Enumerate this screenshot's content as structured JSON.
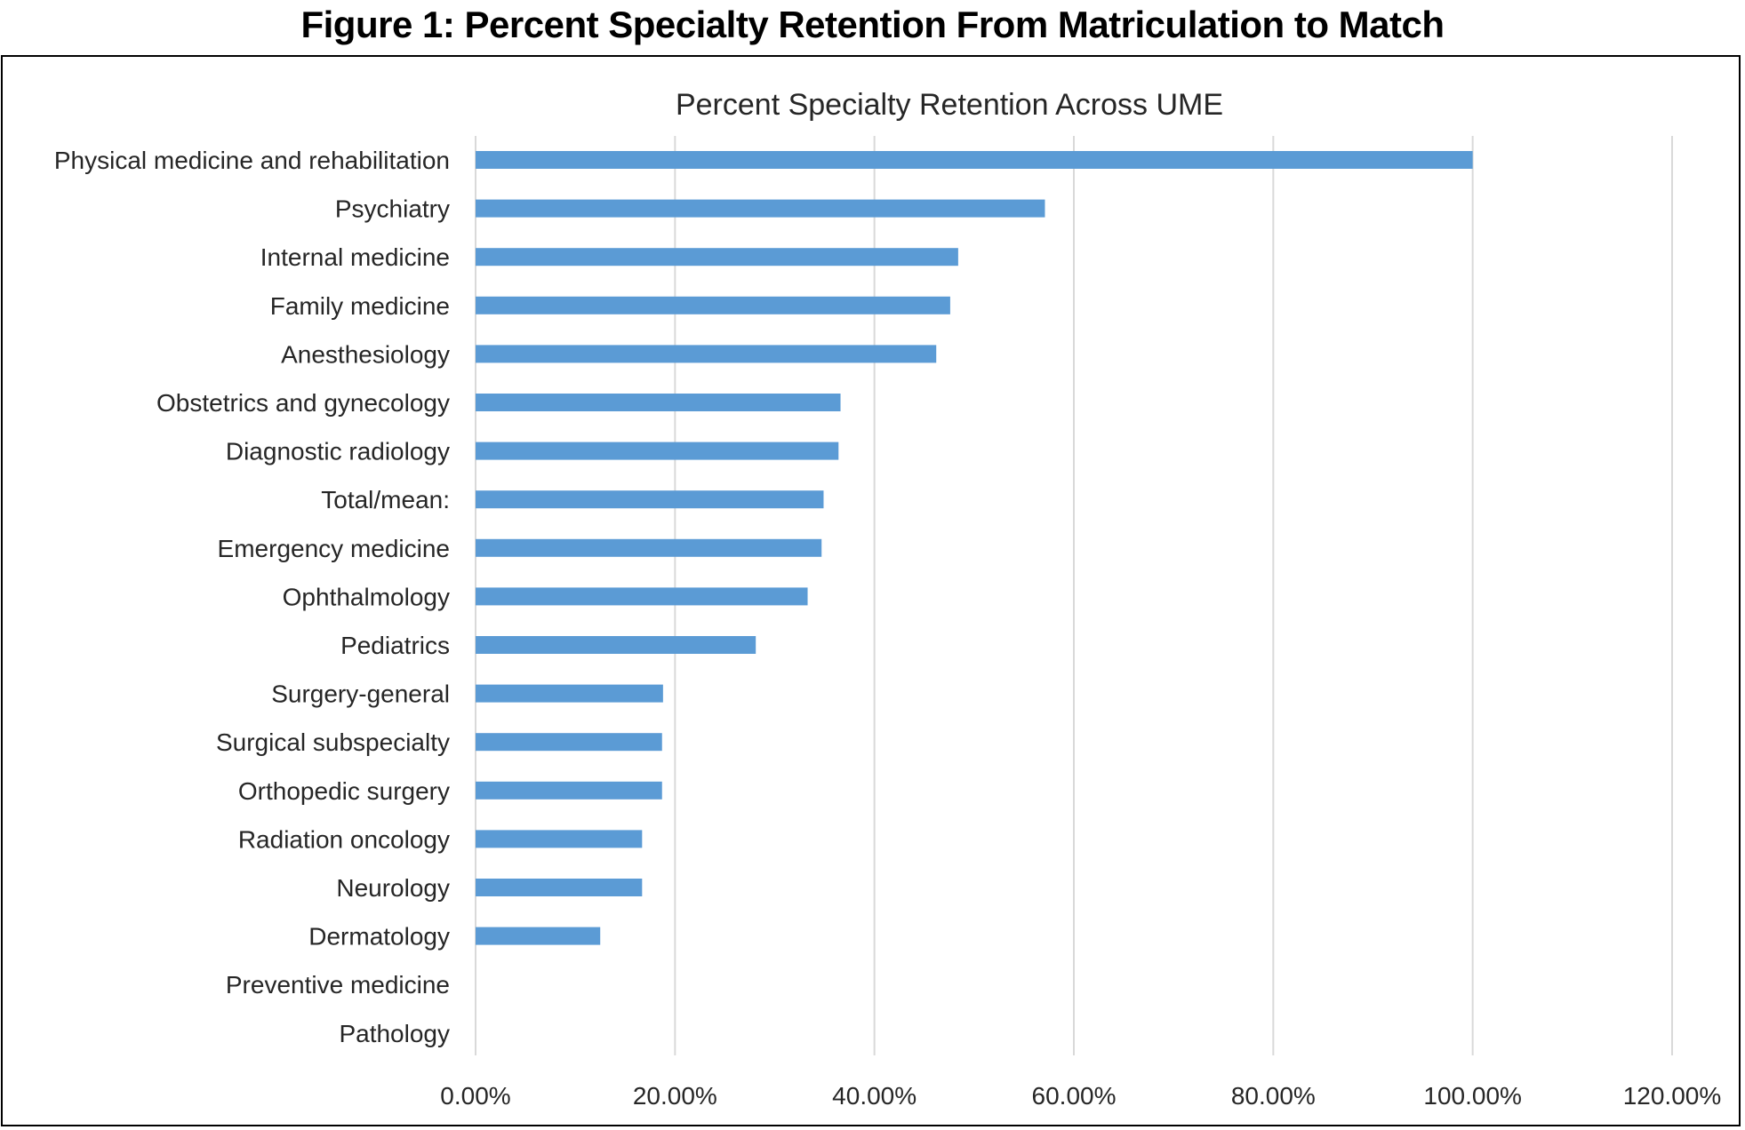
{
  "figure_title": "Figure 1: Percent Specialty Retention From Matriculation to Match",
  "chart_data": {
    "type": "bar",
    "orientation": "horizontal",
    "title": "Percent Specialty Retention Across UME",
    "xlabel": "",
    "ylabel": "",
    "xlim": [
      0,
      1.2
    ],
    "x_ticks": [
      0,
      0.2,
      0.4,
      0.6,
      0.8,
      1.0,
      1.2
    ],
    "x_tick_labels": [
      "0.00%",
      "20.00%",
      "40.00%",
      "60.00%",
      "80.00%",
      "100.00%",
      "120.00%"
    ],
    "grid": "vertical",
    "bar_color": "#5b9bd5",
    "categories": [
      "Physical medicine and rehabilitation",
      "Psychiatry",
      "Internal medicine",
      "Family medicine",
      "Anesthesiology",
      "Obstetrics and gynecology",
      "Diagnostic radiology",
      "Total/mean:",
      "Emergency medicine",
      "Ophthalmology",
      "Pediatrics",
      "Surgery-general",
      "Surgical subspecialty",
      "Orthopedic surgery",
      "Radiation oncology",
      "Neurology",
      "Dermatology",
      "Preventive medicine",
      "Pathology"
    ],
    "values": [
      1.0,
      0.571,
      0.484,
      0.476,
      0.462,
      0.366,
      0.364,
      0.349,
      0.347,
      0.333,
      0.281,
      0.188,
      0.187,
      0.187,
      0.167,
      0.167,
      0.125,
      0,
      0
    ]
  }
}
